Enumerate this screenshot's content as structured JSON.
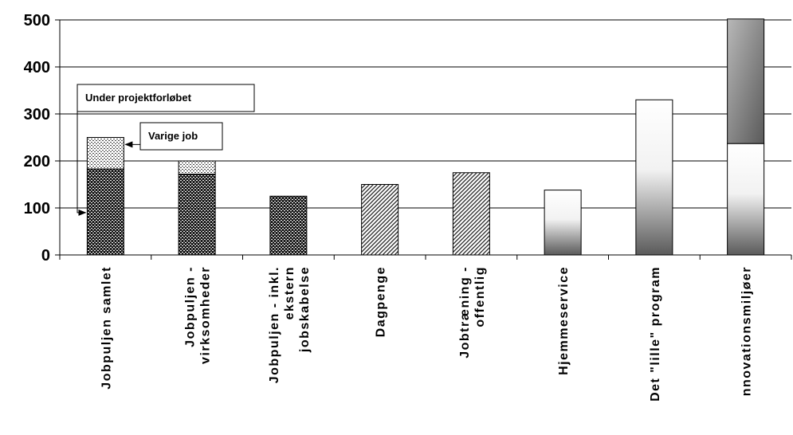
{
  "chart_data": {
    "type": "bar",
    "title": "",
    "xlabel": "",
    "ylabel": "",
    "ylim": [
      0,
      500
    ],
    "yticks": [
      0,
      100,
      200,
      300,
      400,
      500
    ],
    "grid": true,
    "categories": [
      "Jobpuljen samlet",
      "Jobpuljen - virksomheder",
      "Jobpuljen - inkl. ekstern jobskabelse",
      "Dagpenge",
      "Jobtræning - offentlig",
      "Hjemmeservice",
      "Det \"lille\" program",
      "Innovationsmiljøer"
    ],
    "category_label_lines": [
      [
        "Jobpuljen samlet"
      ],
      [
        "Jobpuljen -",
        "virksomheder"
      ],
      [
        "Jobpuljen - inkl.",
        "ekstern",
        "jobskabelse"
      ],
      [
        "Dagpenge"
      ],
      [
        "Jobtræning -",
        "offentlig"
      ],
      [
        "Hjemmeservice"
      ],
      [
        "Det \"lille\" program"
      ],
      [
        "nnovationsmiljøer"
      ]
    ],
    "bars": [
      {
        "segments": [
          {
            "value": 183,
            "style": "dense-weave"
          },
          {
            "value": 67,
            "style": "dots"
          }
        ]
      },
      {
        "segments": [
          {
            "value": 172,
            "style": "dense-weave"
          },
          {
            "value": 28,
            "style": "dots"
          }
        ]
      },
      {
        "segments": [
          {
            "value": 125,
            "style": "dense-weave"
          }
        ]
      },
      {
        "segments": [
          {
            "value": 150,
            "style": "diagonal"
          }
        ]
      },
      {
        "segments": [
          {
            "value": 175,
            "style": "diagonal"
          }
        ]
      },
      {
        "segments": [
          {
            "value": 138,
            "style": "gradient-light"
          }
        ]
      },
      {
        "segments": [
          {
            "value": 330,
            "style": "gradient-light"
          }
        ]
      },
      {
        "segments": [
          {
            "value": 237,
            "style": "gradient-light"
          },
          {
            "value": 265,
            "style": "gradient-dark"
          }
        ]
      }
    ],
    "annotations": [
      {
        "text": "Under projektforløbet",
        "target_bar": 0,
        "target_value": 90
      },
      {
        "text": "Varige job",
        "target_bar": 0,
        "target_value": 235
      }
    ]
  }
}
